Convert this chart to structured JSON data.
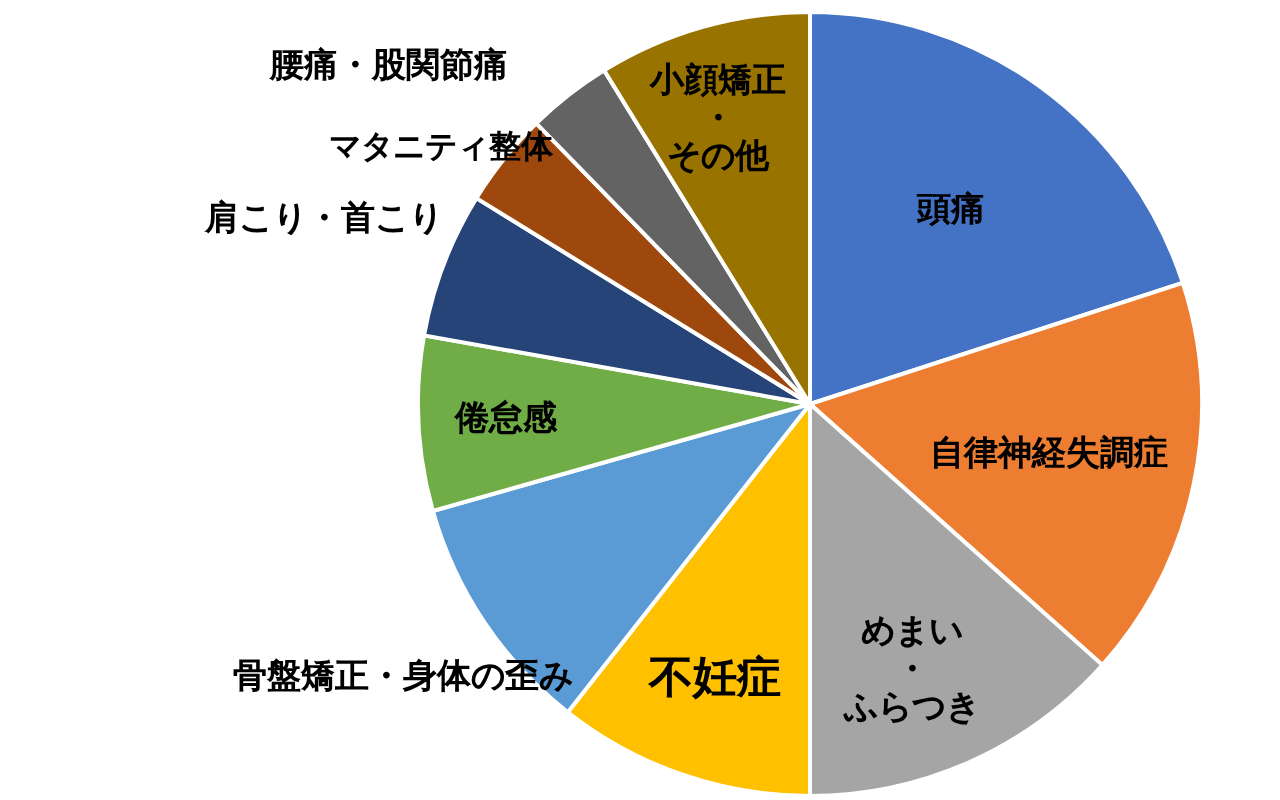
{
  "chart_data": {
    "type": "pie",
    "categories": [
      "頭痛",
      "自律神経失調症",
      "めまい・ふらつき",
      "不妊症",
      "骨盤矯正・身体の歪み",
      "倦怠感",
      "肩こり・首こり",
      "腰痛・股関節痛",
      "マタニティ整体",
      "小顔矯正・その他"
    ],
    "values": [
      20,
      16.6,
      13.4,
      10.6,
      10,
      7.2,
      6,
      3.9,
      3.5,
      8.8
    ],
    "colors": [
      "#4472c4",
      "#ed7d31",
      "#a5a5a5",
      "#ffc000",
      "#5b9bd5",
      "#70ad47",
      "#264478",
      "#9e480e",
      "#636363",
      "#997300"
    ]
  }
}
